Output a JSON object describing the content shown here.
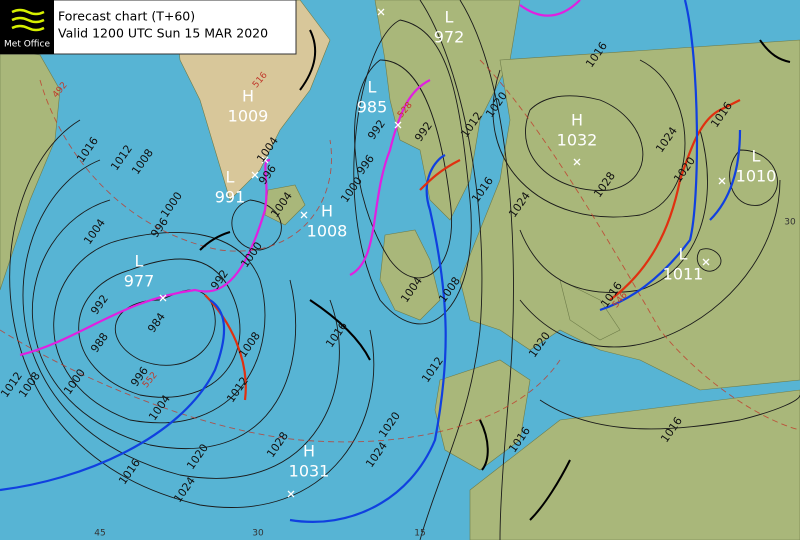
{
  "header": {
    "logo": "Met Office",
    "title": "Forecast chart (T+60)",
    "valid": "Valid 1200 UTC Sun 15 MAR 2020"
  },
  "centers": [
    {
      "type": "L",
      "value": 972
    },
    {
      "type": "L",
      "value": 985
    },
    {
      "type": "H",
      "value": 1009
    },
    {
      "type": "H",
      "value": 1032
    },
    {
      "type": "L",
      "value": 1010
    },
    {
      "type": "L",
      "value": 991
    },
    {
      "type": "H",
      "value": 1008
    },
    {
      "type": "L",
      "value": 977
    },
    {
      "type": "L",
      "value": 1011
    },
    {
      "type": "H",
      "value": 1031
    }
  ],
  "isobar_labels": [
    1016,
    1020,
    1012,
    992,
    996,
    1000,
    1004,
    1000,
    996,
    1004,
    992,
    988,
    984,
    1000,
    1004,
    1008,
    1012,
    996,
    1016,
    1012,
    1008,
    1008,
    1012,
    1016,
    1020,
    1024,
    1028,
    1016,
    1012,
    1020,
    1024,
    1008,
    1004,
    1000,
    992,
    1016,
    1020,
    1024,
    1028,
    1024,
    1020,
    1016,
    1016,
    1016,
    1016,
    1004,
    996,
    992
  ],
  "thickness_labels": [
    492,
    516,
    528,
    546,
    552
  ],
  "longitude_labels": [
    45,
    30,
    15,
    30
  ]
}
